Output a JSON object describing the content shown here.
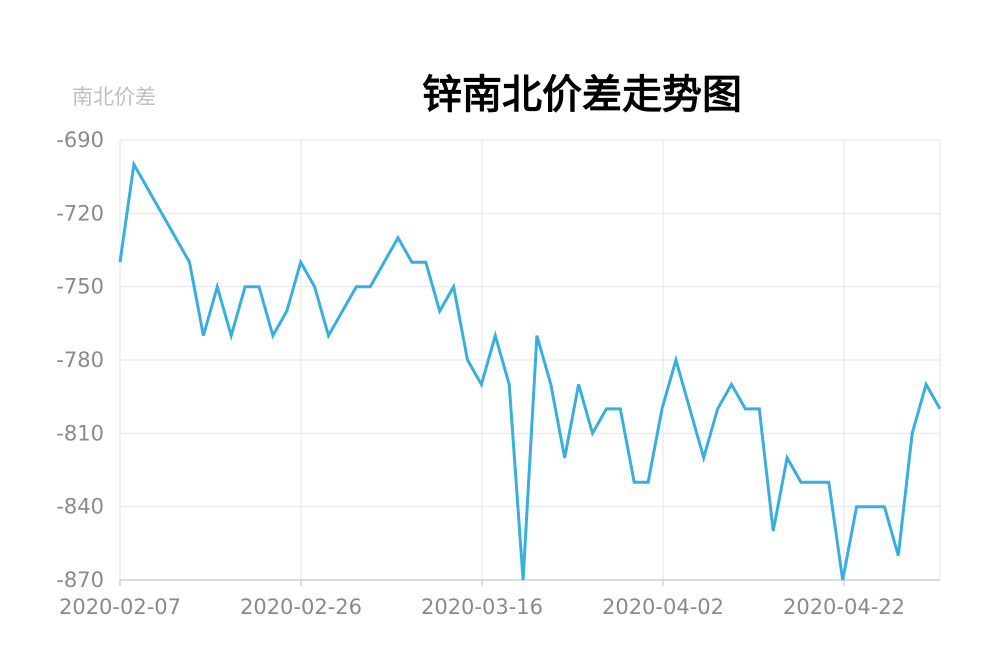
{
  "chart_data": {
    "type": "line",
    "title": "锌南北价差走势图",
    "ylabel": "南北价差",
    "xlabel": "",
    "ylim": [
      -870,
      -690
    ],
    "yticks": [
      "-690",
      "-720",
      "-750",
      "-780",
      "-810",
      "-840",
      "-870"
    ],
    "x_tick_labels": [
      "2020-02-07",
      "2020-02-26",
      "2020-03-16",
      "2020-04-02",
      "2020-04-22"
    ],
    "grid": true,
    "legend": "none",
    "line_color": "#3aaedc",
    "series": [
      {
        "values": [
          -740,
          -700,
          -710,
          -720,
          -730,
          -740,
          -770,
          -750,
          -770,
          -750,
          -750,
          -770,
          -760,
          -740,
          -750,
          -770,
          -760,
          -750,
          -750,
          -740,
          -730,
          -740,
          -740,
          -760,
          -750,
          -780,
          -790,
          -770,
          -790,
          -870,
          -770,
          -790,
          -820,
          -790,
          -810,
          -800,
          -800,
          -830,
          -830,
          -800,
          -780,
          -800,
          -820,
          -800,
          -790,
          -800,
          -800,
          -850,
          -820,
          -830,
          -830,
          -830,
          -870,
          -840,
          -840,
          -840,
          -860,
          -810,
          -790,
          -800
        ]
      }
    ]
  }
}
